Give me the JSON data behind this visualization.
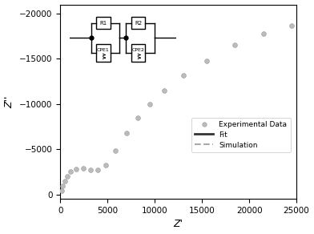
{
  "xlabel": "Z'",
  "ylabel": "Z''",
  "xlim": [
    0,
    25000
  ],
  "ylim": [
    -21000,
    500
  ],
  "yticks": [
    0,
    -5000,
    -10000,
    -15000,
    -20000
  ],
  "xticks": [
    0,
    5000,
    10000,
    15000,
    20000,
    25000
  ],
  "exp_color": "#bbbbbb",
  "fit_color": "#333333",
  "sim_color": "#aaaaaa",
  "fit_lw": 2.5,
  "sim_lw": 1.5,
  "exp_ms": 18,
  "background": "#ffffff",
  "exp_data": [
    [
      100,
      -400
    ],
    [
      250,
      -900
    ],
    [
      450,
      -1500
    ],
    [
      700,
      -2000
    ],
    [
      1100,
      -2500
    ],
    [
      1700,
      -2800
    ],
    [
      2400,
      -2900
    ],
    [
      3200,
      -2700
    ],
    [
      4000,
      -2700
    ],
    [
      4800,
      -3200
    ],
    [
      5800,
      -4800
    ],
    [
      7000,
      -6800
    ],
    [
      8200,
      -8500
    ],
    [
      9500,
      -10000
    ],
    [
      11000,
      -11500
    ],
    [
      13000,
      -13200
    ],
    [
      15500,
      -14800
    ],
    [
      18500,
      -16500
    ],
    [
      21500,
      -17800
    ],
    [
      24500,
      -18700
    ]
  ]
}
